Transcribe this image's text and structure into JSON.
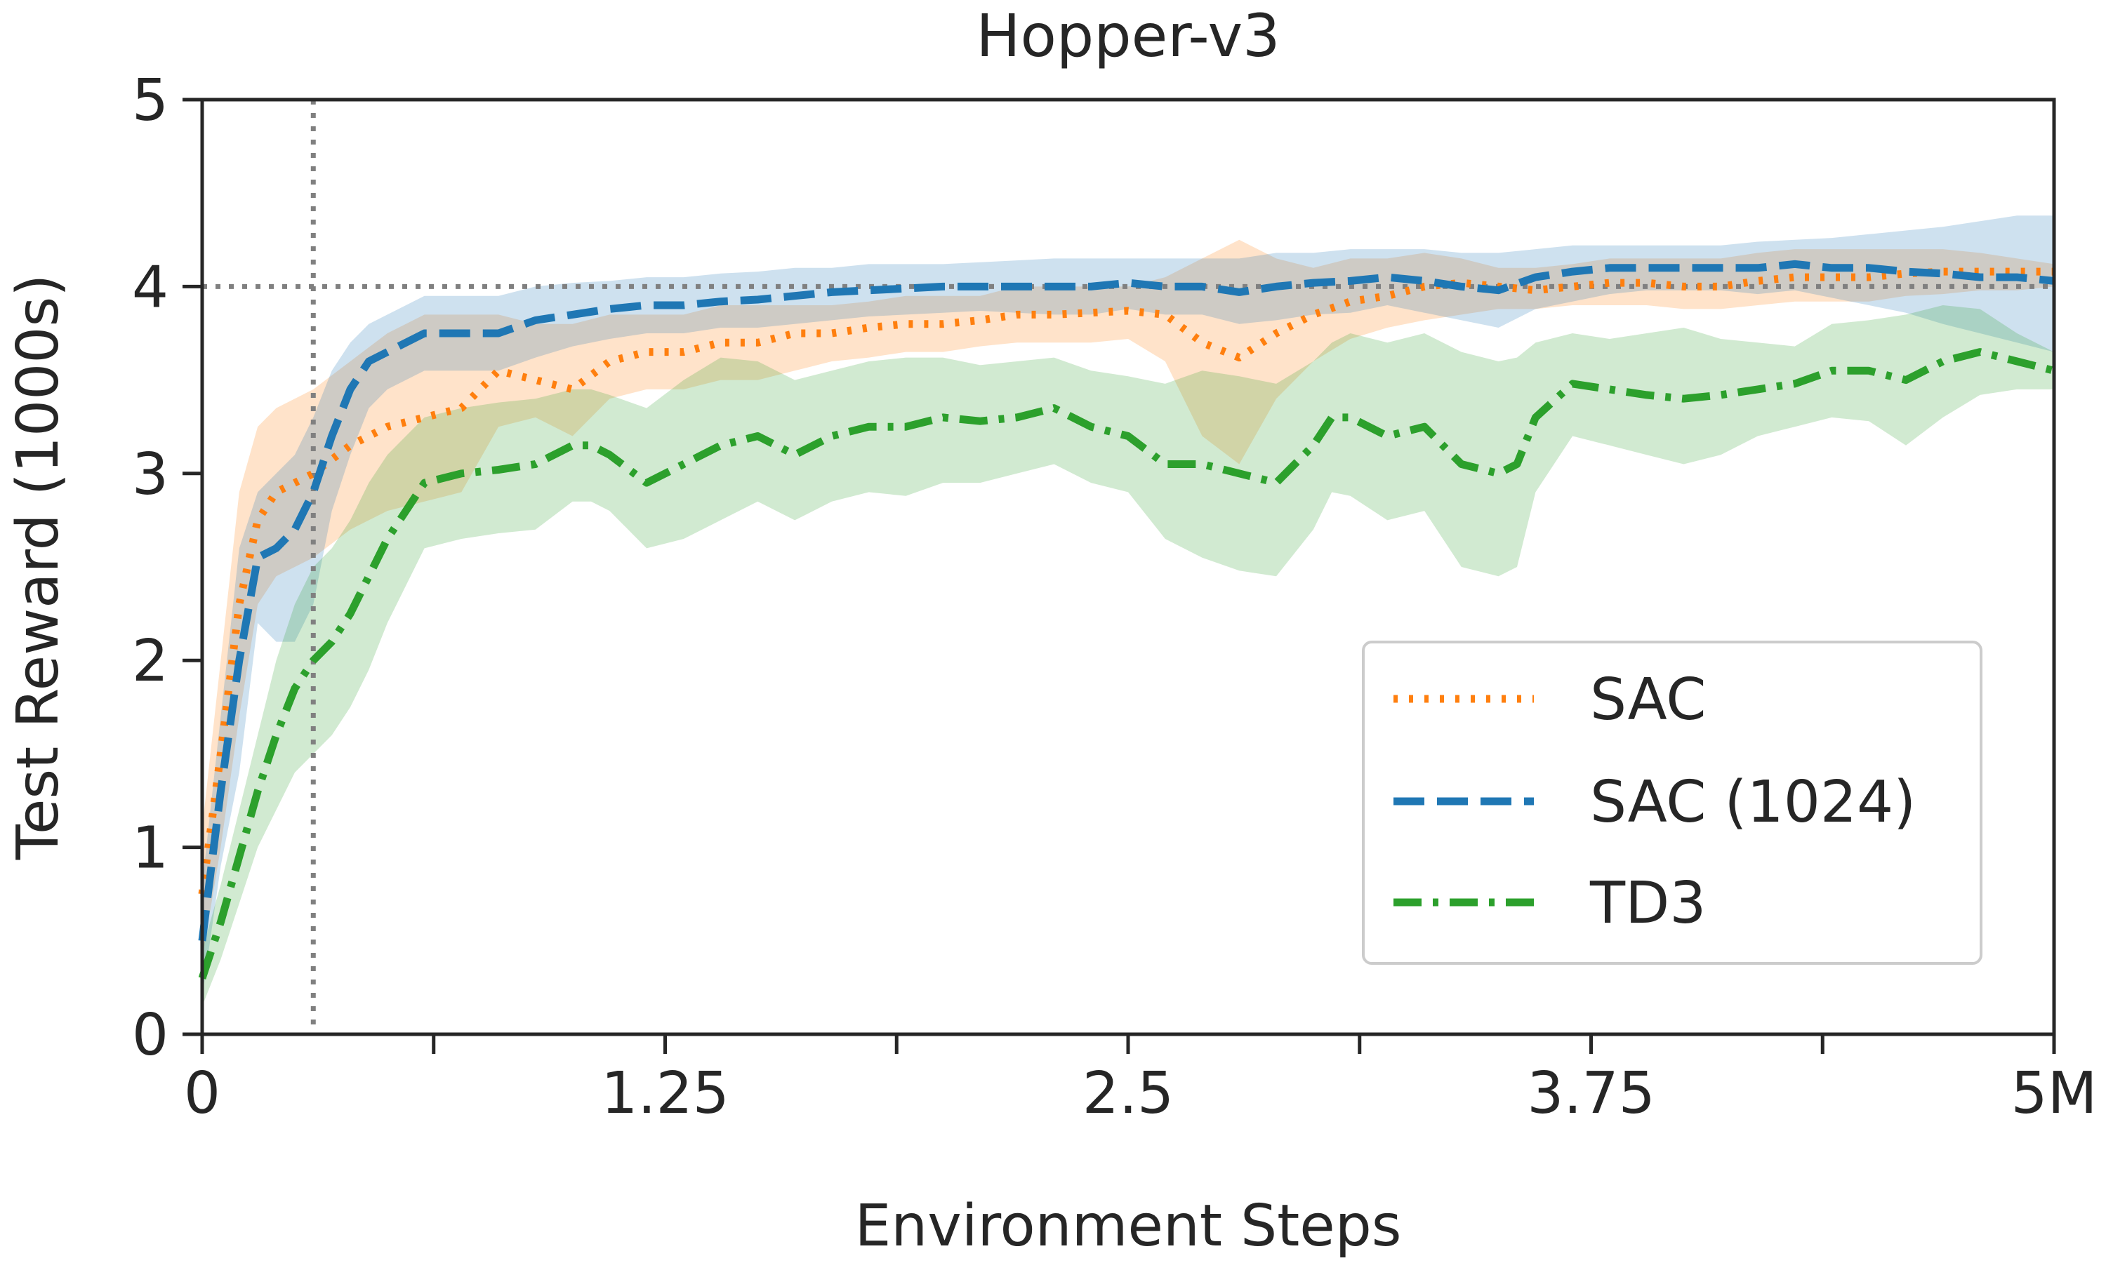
{
  "chart_data": {
    "type": "line",
    "title": "Hopper-v3",
    "xlabel": "Environment Steps",
    "ylabel": "Test Reward (1000s)",
    "xlim": [
      0,
      5
    ],
    "ylim": [
      0,
      5
    ],
    "xticks": [
      0,
      1.25,
      2.5,
      3.75,
      5
    ],
    "xtick_labels": [
      "0",
      "1.25",
      "2.5",
      "3.75",
      "5M"
    ],
    "minor_xticks": [
      0.625,
      1.875,
      3.125,
      4.375
    ],
    "yticks": [
      0,
      1,
      2,
      3,
      4,
      5
    ],
    "ytick_labels": [
      "0",
      "1",
      "2",
      "3",
      "4",
      "5"
    ],
    "grid": false,
    "legend_position": "lower-right",
    "reference_lines": {
      "vertical_x": 0.3,
      "horizontal_y": 4.0,
      "color": "#808080",
      "style": "dotted"
    },
    "series": [
      {
        "name": "SAC",
        "color": "#ff7f0e",
        "style": "dotted",
        "x": [
          0,
          0.05,
          0.1,
          0.15,
          0.2,
          0.25,
          0.3,
          0.4,
          0.5,
          0.6,
          0.7,
          0.8,
          0.9,
          1.0,
          1.1,
          1.2,
          1.3,
          1.4,
          1.5,
          1.6,
          1.7,
          1.8,
          1.9,
          2.0,
          2.1,
          2.2,
          2.3,
          2.4,
          2.5,
          2.6,
          2.7,
          2.8,
          2.9,
          3.0,
          3.1,
          3.2,
          3.3,
          3.4,
          3.5,
          3.6,
          3.7,
          3.8,
          3.9,
          4.0,
          4.1,
          4.2,
          4.3,
          4.4,
          4.5,
          4.6,
          4.7,
          4.8,
          4.9,
          5.0
        ],
        "y": [
          0.75,
          1.5,
          2.3,
          2.75,
          2.9,
          2.95,
          3.0,
          3.15,
          3.25,
          3.3,
          3.35,
          3.55,
          3.5,
          3.45,
          3.6,
          3.65,
          3.65,
          3.7,
          3.7,
          3.75,
          3.75,
          3.78,
          3.8,
          3.8,
          3.82,
          3.85,
          3.85,
          3.86,
          3.87,
          3.85,
          3.7,
          3.62,
          3.75,
          3.85,
          3.92,
          3.95,
          4.0,
          4.02,
          4.0,
          3.98,
          4.0,
          4.02,
          4.02,
          4.0,
          4.0,
          4.03,
          4.05,
          4.05,
          4.05,
          4.07,
          4.08,
          4.08,
          4.08,
          4.08
        ],
        "upper": [
          1.1,
          2.0,
          2.9,
          3.25,
          3.35,
          3.4,
          3.45,
          3.6,
          3.75,
          3.85,
          3.85,
          3.85,
          3.8,
          3.8,
          3.85,
          3.85,
          3.85,
          3.9,
          3.9,
          3.9,
          3.9,
          3.92,
          3.95,
          3.95,
          3.95,
          4.0,
          4.0,
          4.0,
          4.0,
          4.05,
          4.15,
          4.25,
          4.15,
          4.1,
          4.15,
          4.15,
          4.18,
          4.15,
          4.1,
          4.1,
          4.12,
          4.15,
          4.15,
          4.15,
          4.15,
          4.18,
          4.2,
          4.2,
          4.2,
          4.2,
          4.2,
          4.18,
          4.15,
          4.12
        ],
        "lower": [
          0.4,
          1.0,
          1.7,
          2.3,
          2.45,
          2.5,
          2.55,
          2.7,
          2.8,
          2.85,
          2.9,
          3.25,
          3.3,
          3.2,
          3.4,
          3.45,
          3.45,
          3.5,
          3.5,
          3.55,
          3.6,
          3.62,
          3.65,
          3.65,
          3.68,
          3.7,
          3.7,
          3.7,
          3.72,
          3.6,
          3.2,
          3.05,
          3.4,
          3.6,
          3.72,
          3.78,
          3.82,
          3.85,
          3.88,
          3.88,
          3.9,
          3.9,
          3.9,
          3.88,
          3.88,
          3.9,
          3.92,
          3.92,
          3.92,
          3.95,
          3.96,
          3.98,
          3.98,
          4.0
        ]
      },
      {
        "name": "SAC (1024)",
        "color": "#1f77b4",
        "style": "dashed",
        "x": [
          0,
          0.05,
          0.1,
          0.15,
          0.2,
          0.25,
          0.3,
          0.35,
          0.4,
          0.45,
          0.5,
          0.6,
          0.7,
          0.8,
          0.9,
          1.0,
          1.1,
          1.2,
          1.3,
          1.4,
          1.5,
          1.6,
          1.7,
          1.8,
          1.9,
          2.0,
          2.1,
          2.2,
          2.3,
          2.4,
          2.5,
          2.6,
          2.7,
          2.8,
          2.9,
          3.0,
          3.1,
          3.2,
          3.3,
          3.4,
          3.5,
          3.6,
          3.7,
          3.8,
          3.9,
          4.0,
          4.1,
          4.2,
          4.3,
          4.4,
          4.5,
          4.6,
          4.7,
          4.8,
          4.9,
          5.0
        ],
        "y": [
          0.5,
          1.3,
          2.0,
          2.55,
          2.6,
          2.7,
          2.9,
          3.2,
          3.45,
          3.6,
          3.65,
          3.75,
          3.75,
          3.75,
          3.82,
          3.85,
          3.88,
          3.9,
          3.9,
          3.92,
          3.93,
          3.95,
          3.97,
          3.98,
          3.99,
          4.0,
          4.0,
          4.0,
          4.0,
          4.0,
          4.02,
          4.0,
          4.0,
          3.97,
          4.0,
          4.02,
          4.03,
          4.05,
          4.03,
          4.0,
          3.98,
          4.05,
          4.08,
          4.1,
          4.1,
          4.1,
          4.1,
          4.1,
          4.12,
          4.1,
          4.1,
          4.08,
          4.07,
          4.05,
          4.05,
          4.03
        ],
        "upper": [
          0.8,
          1.7,
          2.6,
          2.9,
          3.0,
          3.1,
          3.3,
          3.55,
          3.7,
          3.8,
          3.85,
          3.95,
          3.95,
          3.95,
          4.0,
          4.02,
          4.03,
          4.05,
          4.05,
          4.07,
          4.08,
          4.1,
          4.1,
          4.12,
          4.12,
          4.12,
          4.13,
          4.14,
          4.15,
          4.15,
          4.15,
          4.15,
          4.15,
          4.15,
          4.18,
          4.18,
          4.2,
          4.2,
          4.2,
          4.18,
          4.18,
          4.2,
          4.22,
          4.22,
          4.22,
          4.22,
          4.22,
          4.24,
          4.25,
          4.26,
          4.28,
          4.3,
          4.32,
          4.35,
          4.38,
          4.38
        ],
        "lower": [
          0.2,
          0.9,
          1.4,
          2.2,
          2.1,
          2.1,
          2.3,
          2.8,
          3.1,
          3.35,
          3.45,
          3.55,
          3.55,
          3.55,
          3.62,
          3.68,
          3.72,
          3.75,
          3.75,
          3.78,
          3.78,
          3.8,
          3.82,
          3.84,
          3.85,
          3.86,
          3.87,
          3.86,
          3.85,
          3.85,
          3.88,
          3.85,
          3.85,
          3.8,
          3.82,
          3.85,
          3.86,
          3.9,
          3.86,
          3.82,
          3.78,
          3.88,
          3.92,
          3.96,
          3.98,
          3.98,
          3.98,
          3.96,
          3.98,
          3.94,
          3.9,
          3.86,
          3.8,
          3.75,
          3.7,
          3.65
        ]
      },
      {
        "name": "TD3",
        "color": "#2ca02c",
        "style": "dashdot",
        "x": [
          0,
          0.05,
          0.1,
          0.15,
          0.2,
          0.25,
          0.3,
          0.35,
          0.4,
          0.45,
          0.5,
          0.55,
          0.6,
          0.7,
          0.8,
          0.9,
          1.0,
          1.05,
          1.1,
          1.2,
          1.3,
          1.4,
          1.5,
          1.6,
          1.7,
          1.8,
          1.9,
          2.0,
          2.1,
          2.2,
          2.3,
          2.4,
          2.5,
          2.6,
          2.7,
          2.8,
          2.9,
          3.0,
          3.05,
          3.1,
          3.2,
          3.3,
          3.4,
          3.5,
          3.55,
          3.6,
          3.7,
          3.8,
          3.9,
          4.0,
          4.1,
          4.2,
          4.3,
          4.4,
          4.5,
          4.6,
          4.7,
          4.8,
          4.9,
          5.0
        ],
        "y": [
          0.3,
          0.6,
          0.95,
          1.3,
          1.6,
          1.85,
          2.0,
          2.1,
          2.25,
          2.45,
          2.65,
          2.8,
          2.95,
          3.0,
          3.02,
          3.05,
          3.15,
          3.15,
          3.1,
          2.95,
          3.05,
          3.15,
          3.2,
          3.1,
          3.2,
          3.25,
          3.25,
          3.3,
          3.28,
          3.3,
          3.35,
          3.25,
          3.2,
          3.05,
          3.05,
          3.0,
          2.95,
          3.15,
          3.3,
          3.3,
          3.2,
          3.25,
          3.05,
          3.0,
          3.05,
          3.3,
          3.48,
          3.45,
          3.42,
          3.4,
          3.42,
          3.45,
          3.48,
          3.55,
          3.55,
          3.5,
          3.6,
          3.65,
          3.6,
          3.55
        ],
        "upper": [
          0.45,
          0.8,
          1.2,
          1.6,
          2.0,
          2.3,
          2.5,
          2.6,
          2.75,
          2.95,
          3.1,
          3.2,
          3.3,
          3.35,
          3.38,
          3.4,
          3.45,
          3.45,
          3.42,
          3.35,
          3.5,
          3.62,
          3.6,
          3.5,
          3.55,
          3.6,
          3.62,
          3.62,
          3.58,
          3.6,
          3.62,
          3.55,
          3.52,
          3.48,
          3.55,
          3.52,
          3.48,
          3.6,
          3.7,
          3.75,
          3.7,
          3.75,
          3.65,
          3.6,
          3.62,
          3.7,
          3.75,
          3.72,
          3.75,
          3.78,
          3.72,
          3.7,
          3.68,
          3.8,
          3.82,
          3.85,
          3.9,
          3.88,
          3.75,
          3.65
        ],
        "lower": [
          0.15,
          0.4,
          0.7,
          1.0,
          1.2,
          1.4,
          1.5,
          1.6,
          1.75,
          1.95,
          2.2,
          2.4,
          2.6,
          2.65,
          2.68,
          2.7,
          2.85,
          2.85,
          2.8,
          2.6,
          2.65,
          2.75,
          2.85,
          2.75,
          2.85,
          2.9,
          2.88,
          2.95,
          2.95,
          3.0,
          3.05,
          2.95,
          2.9,
          2.65,
          2.55,
          2.48,
          2.45,
          2.7,
          2.9,
          2.88,
          2.75,
          2.8,
          2.5,
          2.45,
          2.5,
          2.9,
          3.2,
          3.15,
          3.1,
          3.05,
          3.1,
          3.2,
          3.25,
          3.3,
          3.28,
          3.15,
          3.3,
          3.42,
          3.45,
          3.45
        ]
      }
    ]
  }
}
